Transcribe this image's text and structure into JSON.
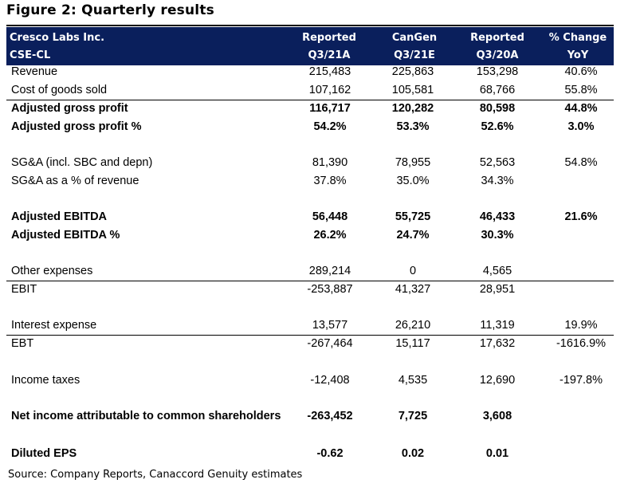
{
  "title": "Figure 2: Quarterly results",
  "header": {
    "label_line1": "Cresco Labs Inc.",
    "label_line2": "CSE-CL",
    "col1_line1": "Reported",
    "col1_line2": "Q3/21A",
    "col2_line1": "CanGen",
    "col2_line2": "Q3/21E",
    "col3_line1": "Reported",
    "col3_line2": "Q3/20A",
    "col4_line1": "% Change",
    "col4_line2": "YoY"
  },
  "rows": [
    {
      "label": "Revenue",
      "c1": "215,483",
      "c2": "225,863",
      "c3": "153,298",
      "c4": "40.6%"
    },
    {
      "label": "Cost of goods sold",
      "c1": "107,162",
      "c2": "105,581",
      "c3": "68,766",
      "c4": "55.8%"
    },
    {
      "label": "Adjusted gross profit",
      "c1": "116,717",
      "c2": "120,282",
      "c3": "80,598",
      "c4": "44.8%"
    },
    {
      "label": "Adjusted gross profit %",
      "c1": "54.2%",
      "c2": "53.3%",
      "c3": "52.6%",
      "c4": "3.0%"
    },
    {
      "label": "SG&A (incl. SBC and depn)",
      "c1": "81,390",
      "c2": "78,955",
      "c3": "52,563",
      "c4": "54.8%"
    },
    {
      "label": "SG&A as a % of revenue",
      "c1": "37.8%",
      "c2": "35.0%",
      "c3": "34.3%",
      "c4": ""
    },
    {
      "label": "Adjusted EBITDA",
      "c1": "56,448",
      "c2": "55,725",
      "c3": "46,433",
      "c4": "21.6%"
    },
    {
      "label": "Adjusted EBITDA %",
      "c1": "26.2%",
      "c2": "24.7%",
      "c3": "30.3%",
      "c4": ""
    },
    {
      "label": "Other expenses",
      "c1": "289,214",
      "c2": "0",
      "c3": "4,565",
      "c4": ""
    },
    {
      "label": "EBIT",
      "c1": "-253,887",
      "c2": "41,327",
      "c3": "28,951",
      "c4": ""
    },
    {
      "label": "Interest expense",
      "c1": "13,577",
      "c2": "26,210",
      "c3": "11,319",
      "c4": "19.9%"
    },
    {
      "label": "EBT",
      "c1": "-267,464",
      "c2": "15,117",
      "c3": "17,632",
      "c4": "-1616.9%"
    },
    {
      "label": "Income taxes",
      "c1": "-12,408",
      "c2": "4,535",
      "c3": "12,690",
      "c4": "-197.8%"
    },
    {
      "label": "Net income attributable to common shareholders",
      "c1": "-263,452",
      "c2": "7,725",
      "c3": "3,608",
      "c4": ""
    },
    {
      "label": "Diluted EPS",
      "c1": "-0.62",
      "c2": "0.02",
      "c3": "0.01",
      "c4": ""
    }
  ],
  "source": "Source: Company Reports, Canaccord Genuity estimates",
  "colors": {
    "header_bg": "#0a1f5c",
    "header_text": "#ffffff"
  }
}
